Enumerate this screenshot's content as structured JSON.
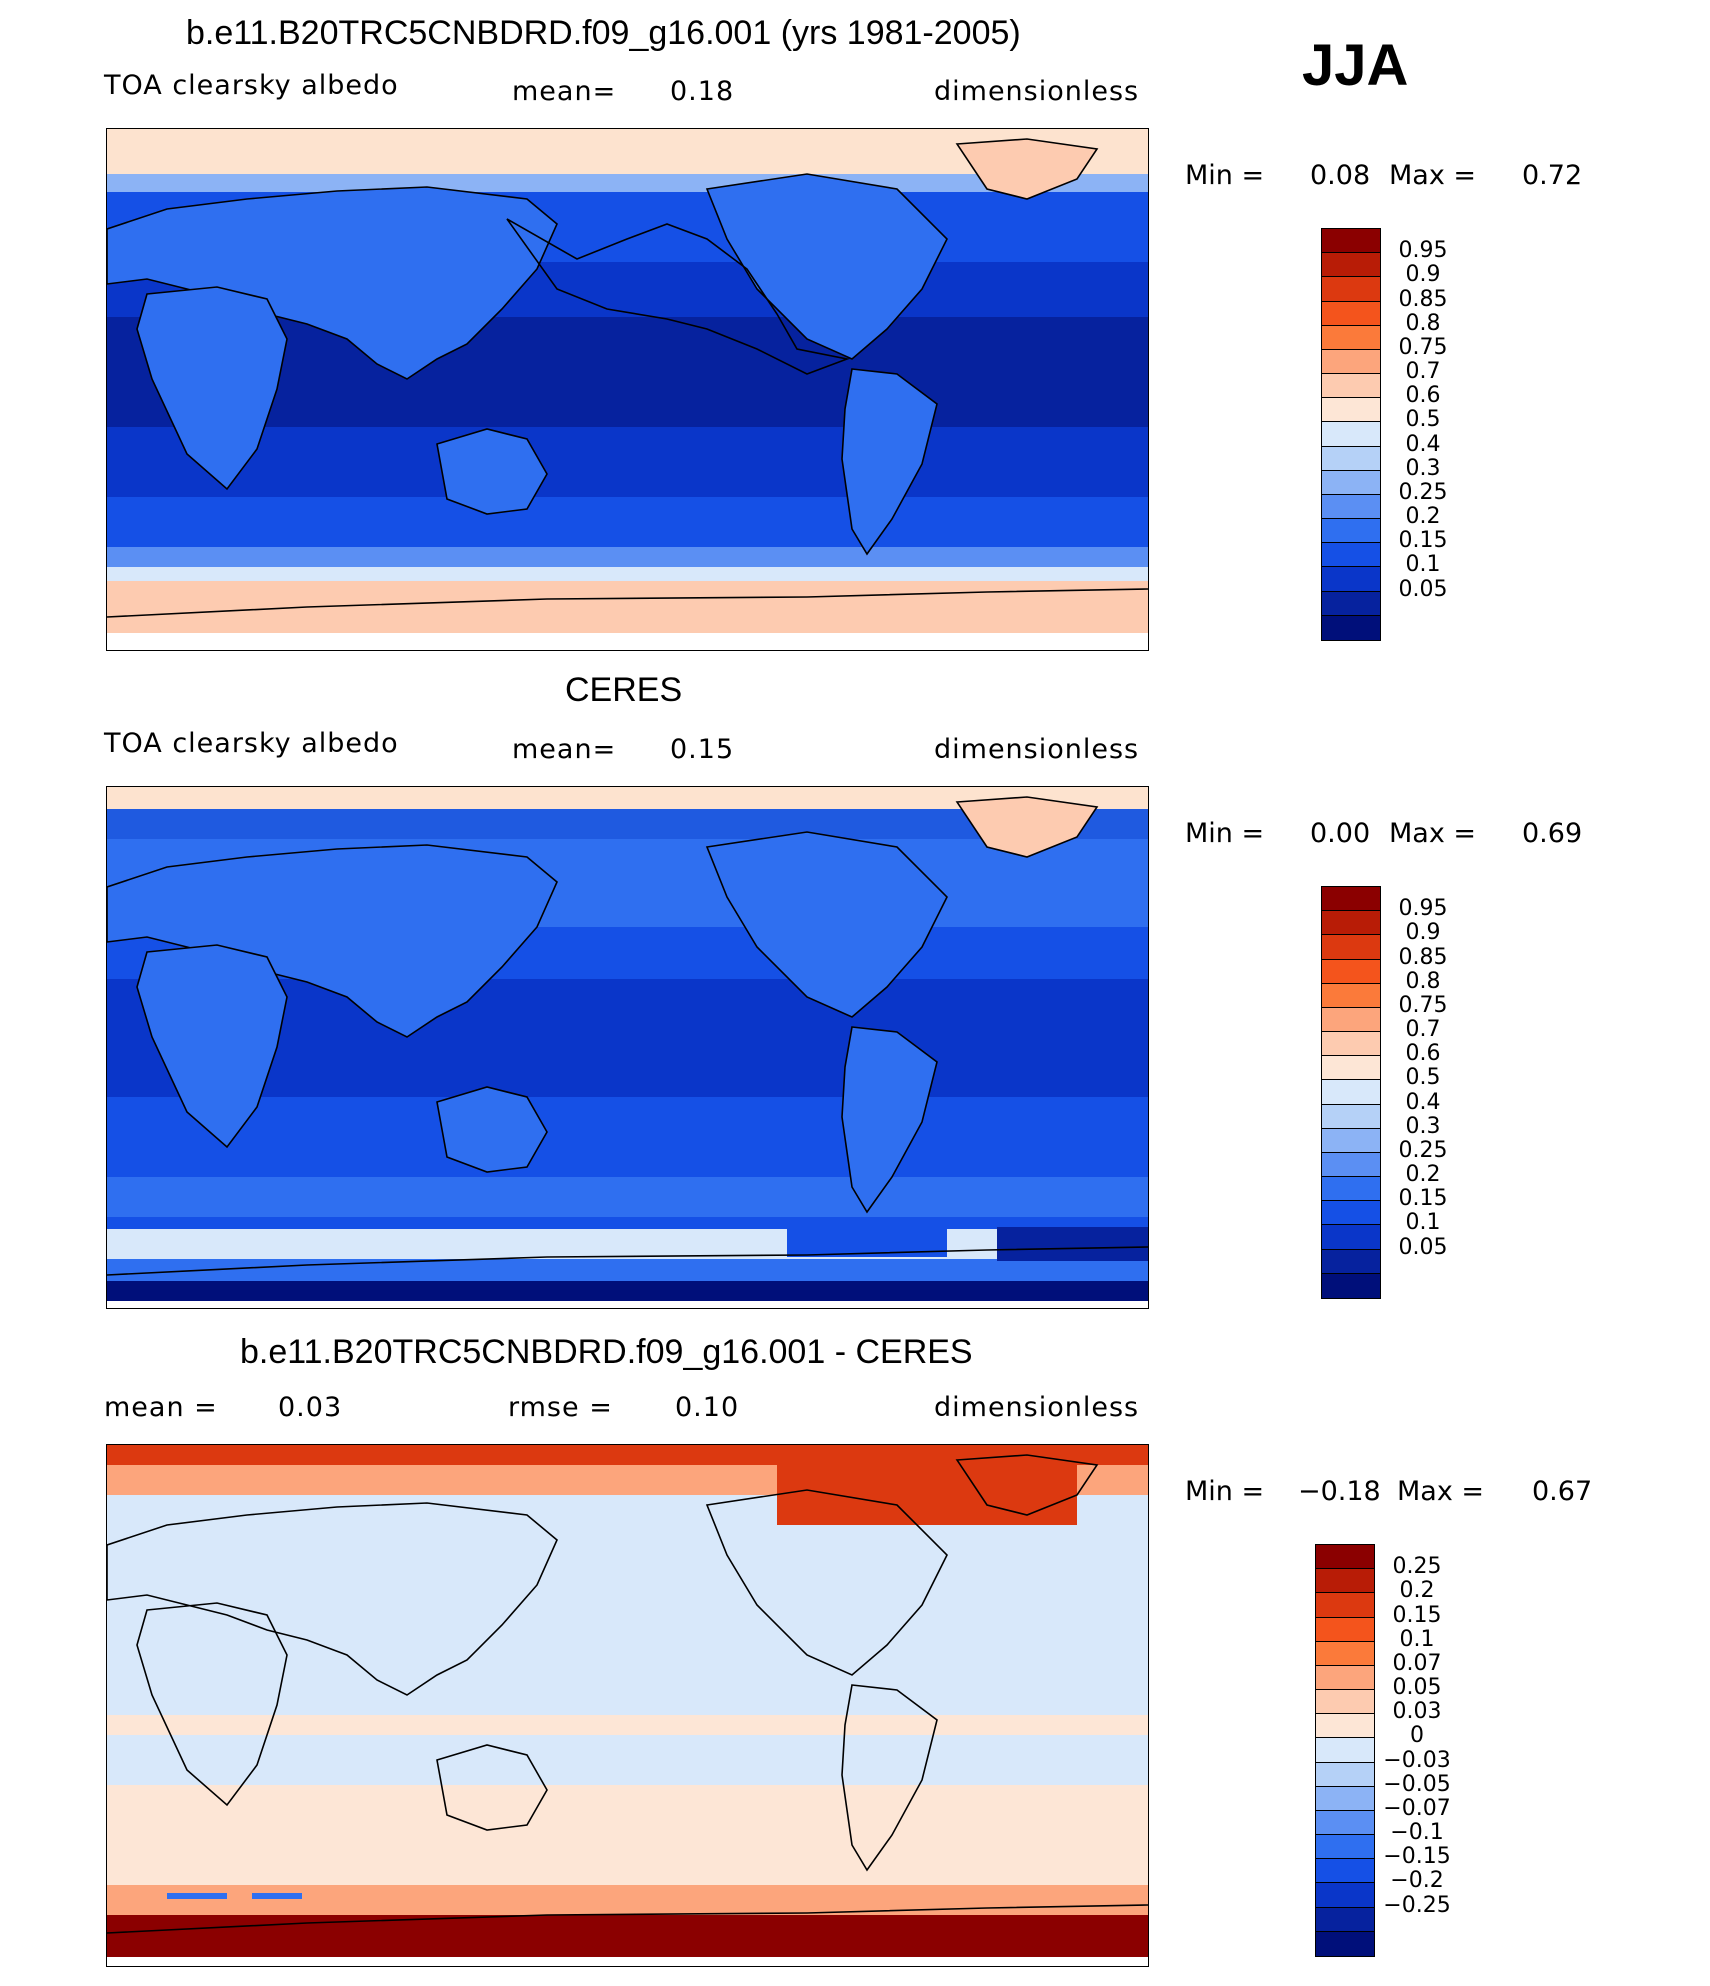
{
  "season": "JJA",
  "panels": [
    {
      "title": "b.e11.B20TRC5CNBDRD.f09_g16.001 (yrs 1981-2005)",
      "left_label": "TOA clearsky albedo",
      "mean_label": "mean=",
      "mean_value": "0.18",
      "units": "dimensionless",
      "min_label": "Min =",
      "min_value": "0.08",
      "max_label": "Max =",
      "max_value": "0.72",
      "colorbar": {
        "colors": [
          "#8b0000",
          "#b81c06",
          "#dc3910",
          "#f4541c",
          "#fb7a3a",
          "#fca57c",
          "#fdcbb0",
          "#fde6d6",
          "#d8e8fa",
          "#b5d1f7",
          "#8cb3f5",
          "#5b8ff3",
          "#2f6ff0",
          "#1550e6",
          "#0a36c9",
          "#06229e",
          "#000f7a"
        ],
        "labels": [
          "0.95",
          "0.9",
          "0.85",
          "0.8",
          "0.75",
          "0.7",
          "0.6",
          "0.5",
          "0.4",
          "0.3",
          "0.25",
          "0.2",
          "0.15",
          "0.1",
          "0.05"
        ]
      }
    },
    {
      "title": "CERES",
      "left_label": "TOA clearsky albedo",
      "mean_label": "mean=",
      "mean_value": "0.15",
      "units": "dimensionless",
      "min_label": "Min =",
      "min_value": "0.00",
      "max_label": "Max =",
      "max_value": "0.69",
      "colorbar": {
        "colors": [
          "#8b0000",
          "#b81c06",
          "#dc3910",
          "#f4541c",
          "#fb7a3a",
          "#fca57c",
          "#fdcbb0",
          "#fde6d6",
          "#d8e8fa",
          "#b5d1f7",
          "#8cb3f5",
          "#5b8ff3",
          "#2f6ff0",
          "#1550e6",
          "#0a36c9",
          "#06229e",
          "#000f7a"
        ],
        "labels": [
          "0.95",
          "0.9",
          "0.85",
          "0.8",
          "0.75",
          "0.7",
          "0.6",
          "0.5",
          "0.4",
          "0.3",
          "0.25",
          "0.2",
          "0.15",
          "0.1",
          "0.05"
        ]
      }
    },
    {
      "title": "b.e11.B20TRC5CNBDRD.f09_g16.001 - CERES",
      "left_label": "mean =",
      "left_value": "0.03",
      "rmse_label": "rmse =",
      "rmse_value": "0.10",
      "units": "dimensionless",
      "min_label": "Min =",
      "min_value": "−0.18",
      "max_label": "Max =",
      "max_value": "0.67",
      "colorbar": {
        "colors": [
          "#8b0000",
          "#b81c06",
          "#dc3910",
          "#f4541c",
          "#fb7a3a",
          "#fca57c",
          "#fdcbb0",
          "#fde6d6",
          "#d8e8fa",
          "#b5d1f7",
          "#8cb3f5",
          "#5b8ff3",
          "#2f6ff0",
          "#1550e6",
          "#0a36c9",
          "#06229e",
          "#000f7a"
        ],
        "labels": [
          "0.25",
          "0.2",
          "0.15",
          "0.1",
          "0.07",
          "0.05",
          "0.03",
          "0",
          "−0.03",
          "−0.05",
          "−0.07",
          "−0.1",
          "−0.15",
          "−0.2",
          "−0.25"
        ]
      }
    }
  ]
}
